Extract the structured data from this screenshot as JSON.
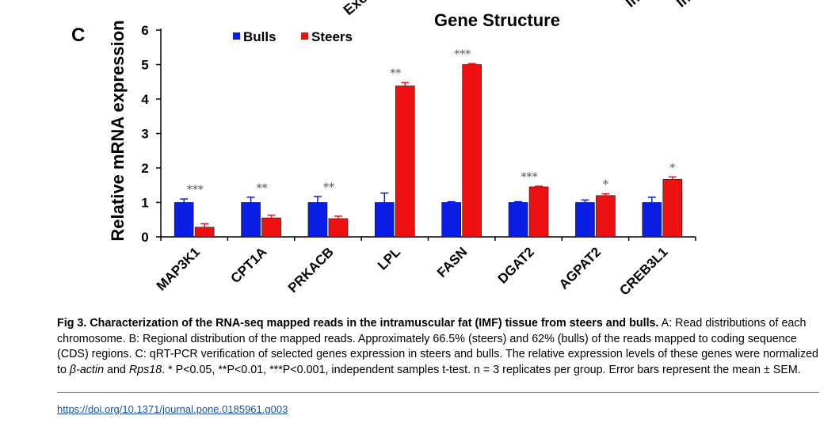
{
  "panel_letter": "C",
  "gene_structure_title": "Gene Structure",
  "cropped_labels": [
    "Exo",
    "In",
    "In"
  ],
  "chart_data": {
    "type": "bar",
    "categories": [
      "MAP3K1",
      "CPT1A",
      "PRKACB",
      "LPL",
      "FASN",
      "DGAT2",
      "AGPAT2",
      "CREB3L1"
    ],
    "series": [
      {
        "name": "Bulls",
        "color": "#0a1ee6",
        "values": [
          1.0,
          1.0,
          1.0,
          1.0,
          1.0,
          1.0,
          1.0,
          1.0
        ],
        "errors": [
          0.1,
          0.15,
          0.17,
          0.27,
          0.02,
          0.02,
          0.07,
          0.15
        ]
      },
      {
        "name": "Steers",
        "color": "#ee1111",
        "values": [
          0.28,
          0.55,
          0.53,
          4.38,
          5.0,
          1.45,
          1.2,
          1.67
        ],
        "errors": [
          0.1,
          0.08,
          0.07,
          0.1,
          0.03,
          0.02,
          0.05,
          0.07
        ]
      }
    ],
    "significance": [
      "***",
      "**",
      "**",
      "**",
      "***",
      "***",
      "*",
      "*"
    ],
    "ylabel": "Relative mRNA expression",
    "xlabel": "",
    "ylim": [
      0,
      6
    ],
    "yticks": [
      0,
      1,
      2,
      3,
      4,
      5,
      6
    ],
    "grid": false,
    "legend_position": "top-left"
  },
  "caption": {
    "title": "Fig 3. Characterization of the RNA-seq mapped reads in the intramuscular fat (IMF) tissue from steers and bulls.",
    "part1": " A: Read distributions of each chromosome. B: Regional distribution of the mapped reads. Approximately 66.5% (steers) and 62% (bulls) of the reads mapped to coding sequence (CDS) regions. C: qRT-PCR verification of selected genes expression in steers and bulls. The relative expression levels of these genes were normalized to ",
    "gene1": "β-actin",
    "and_text": " and ",
    "gene2": "Rps18",
    "part2": ". * P<0.05, **P<0.01, ***P<0.001, independent samples t-test. n = 3 replicates per group. Error bars represent the mean ± SEM."
  },
  "doi_link": "https://doi.org/10.1371/journal.pone.0185961.g003"
}
